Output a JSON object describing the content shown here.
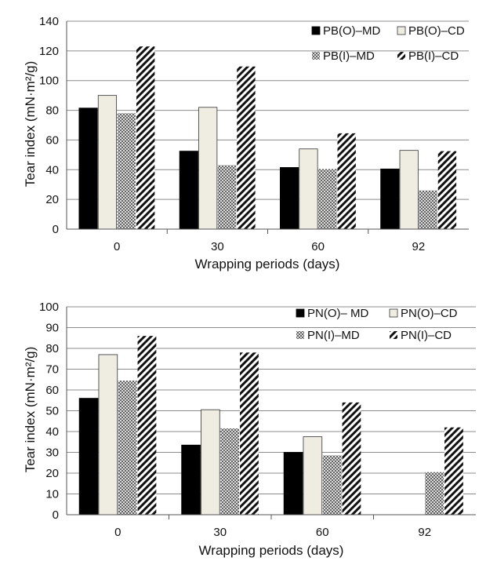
{
  "chart_data": [
    {
      "type": "bar",
      "categories": [
        "0",
        "30",
        "60",
        "92"
      ],
      "xlabel": "Wrapping periods (days)",
      "ylabel": "Tear index  (mN·m²/g)",
      "ylim": [
        0,
        140
      ],
      "yticks": [
        0,
        20,
        40,
        60,
        80,
        100,
        120,
        140
      ],
      "grid": true,
      "legend": "top-right",
      "series": [
        {
          "name": "PB(O)–MD",
          "values": [
            81.5,
            52.5,
            41.5,
            40.5
          ],
          "pattern": "solid-black"
        },
        {
          "name": "PB(O)–CD",
          "values": [
            90,
            82,
            54,
            53
          ],
          "pattern": "solid-beige"
        },
        {
          "name": "PB(I)–MD",
          "values": [
            78,
            43,
            40.5,
            26
          ],
          "pattern": "crosshatch"
        },
        {
          "name": "PB(I)–CD",
          "values": [
            123,
            109.5,
            64.5,
            52.5
          ],
          "pattern": "diagonal"
        }
      ]
    },
    {
      "type": "bar",
      "categories": [
        "0",
        "30",
        "60",
        "92"
      ],
      "xlabel": "Wrapping periods (days)",
      "ylabel": "Tear index  (mN·m²/g)",
      "ylim": [
        0,
        100
      ],
      "yticks": [
        0,
        10,
        20,
        30,
        40,
        50,
        60,
        70,
        80,
        90,
        100
      ],
      "grid": true,
      "legend": "top-right",
      "series": [
        {
          "name": "PN(O)– MD",
          "values": [
            56,
            33.5,
            30,
            0
          ],
          "pattern": "solid-black"
        },
        {
          "name": "PN(O)–CD",
          "values": [
            77,
            50.5,
            37.5,
            0
          ],
          "pattern": "solid-beige"
        },
        {
          "name": "PN(I)–MD",
          "values": [
            64.5,
            41.5,
            28.5,
            20.5
          ],
          "pattern": "crosshatch"
        },
        {
          "name": "PN(I)–CD",
          "values": [
            86,
            78,
            54,
            42
          ],
          "pattern": "diagonal"
        }
      ]
    }
  ]
}
